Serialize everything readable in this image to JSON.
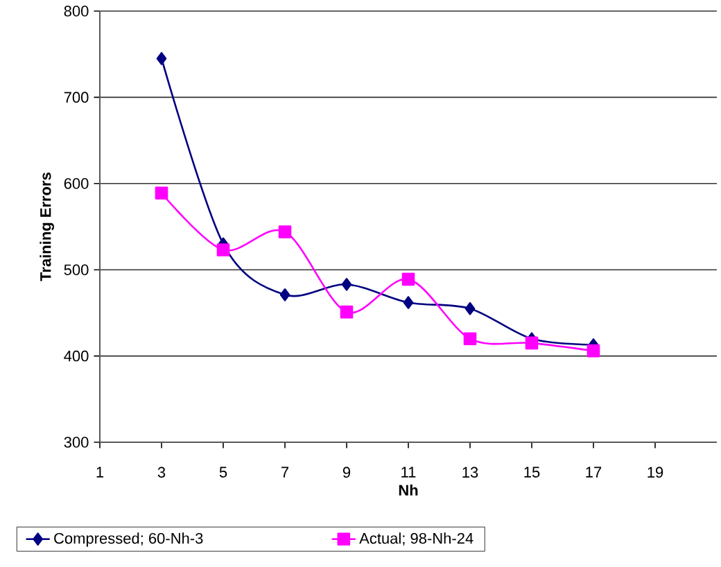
{
  "chart_data": {
    "type": "line",
    "xlabel": "Nh",
    "ylabel": "Training Errors",
    "x": [
      3,
      5,
      7,
      9,
      11,
      13,
      15,
      17
    ],
    "series": [
      {
        "name": "Compressed; 60-Nh-3",
        "color": "#000080",
        "marker": "diamond",
        "values": [
          745,
          530,
          471,
          483,
          462,
          455,
          420,
          413
        ]
      },
      {
        "name": "Actual; 98-Nh-24",
        "color": "#ff00ff",
        "marker": "square",
        "values": [
          589,
          523,
          544,
          451,
          489,
          420,
          415,
          406
        ]
      }
    ],
    "xlim": [
      1,
      21
    ],
    "xticks": [
      1,
      3,
      5,
      7,
      9,
      11,
      13,
      15,
      17,
      19
    ],
    "ylim": [
      300,
      800
    ],
    "yticks": [
      300,
      400,
      500,
      600,
      700,
      800
    ],
    "grid": "y",
    "legend": "bottom",
    "line_style": "solid"
  }
}
